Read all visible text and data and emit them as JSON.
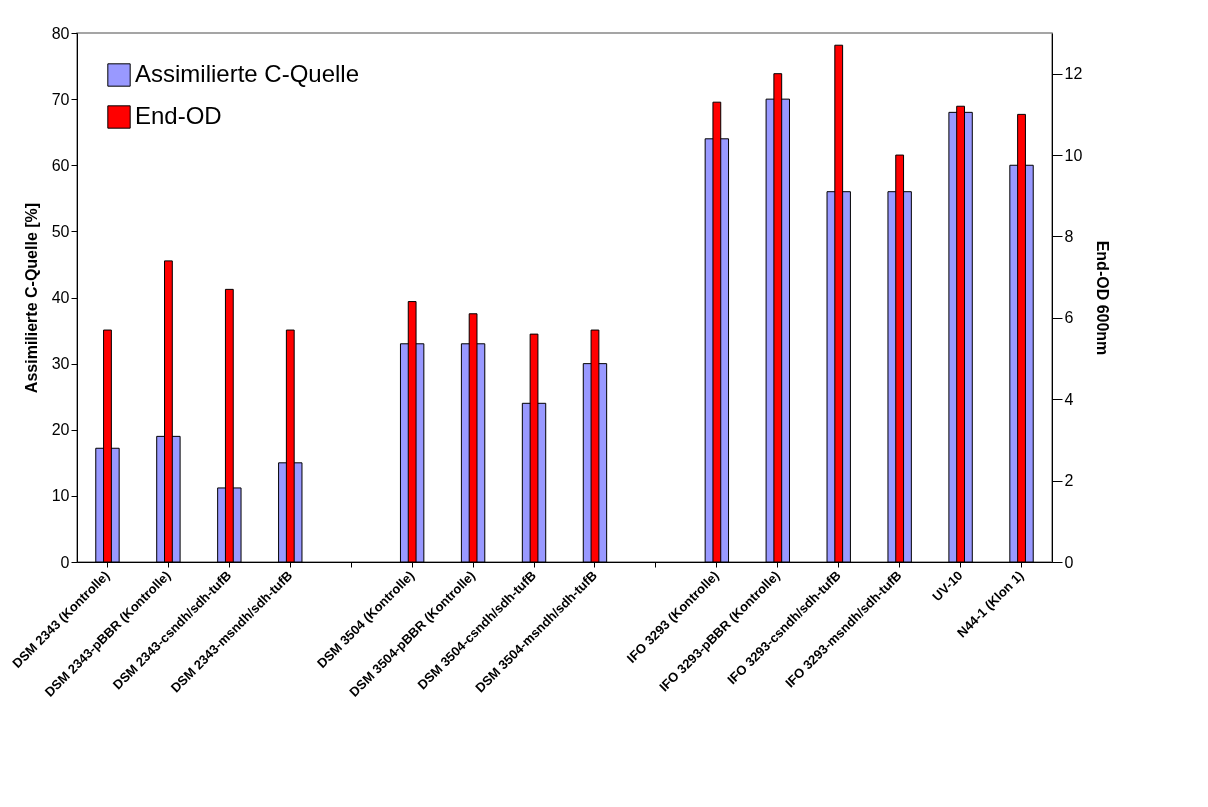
{
  "chart_data": {
    "type": "bar",
    "categories": [
      "DSM 2343 (Kontrolle)",
      "DSM 2343-pBBR (Kontrolle)",
      "DSM 2343-csndh/sdh-tufB",
      "DSM 2343-msndh/sdh-tufB",
      null,
      "DSM 3504 (Kontrolle)",
      "DSM 3504-pBBR (Kontrolle)",
      "DSM 3504-csndh/sdh-tufB",
      "DSM 3504-msndh/sdh-tufB",
      null,
      "IFO 3293 (Kontrolle)",
      "IFO 3293-pBBR (Kontrolle)",
      "IFO 3293-csndh/sdh-tufB",
      "IFO 3293-msndh/sdh-tufB",
      "UV-10",
      "N44-1 (Klon 1)"
    ],
    "series": [
      {
        "name": "Assimilierte C-Quelle",
        "color": "#9999ff",
        "values": [
          17.2,
          19,
          11.2,
          15,
          null,
          33,
          33,
          24,
          30,
          null,
          64,
          70,
          56,
          56,
          68,
          60
        ]
      },
      {
        "name": "End-OD",
        "color": "#ff0000",
        "axis": "y2",
        "values": [
          5.7,
          7.4,
          6.7,
          5.7,
          null,
          6.4,
          6.1,
          5.6,
          5.7,
          null,
          11.3,
          12,
          12.7,
          10,
          11.2,
          11
        ]
      }
    ],
    "ylabel": "Assimilierte C-Quelle [%]",
    "y2label": "End-OD 600nm",
    "ylim": [
      0,
      80
    ],
    "yticks": [
      0,
      10,
      20,
      30,
      40,
      50,
      60,
      70,
      80
    ],
    "y2lim": [
      0,
      13
    ],
    "y2ticks": [
      0,
      2,
      4,
      6,
      8,
      10,
      12
    ],
    "legend": "top left",
    "grid": false
  }
}
